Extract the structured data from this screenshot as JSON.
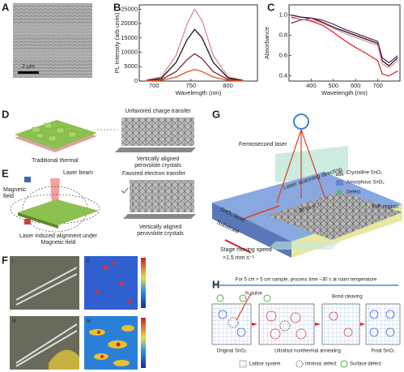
{
  "panels": {
    "A": {
      "letter": "A",
      "scale": "2 μm"
    },
    "B": {
      "letter": "B"
    },
    "C": {
      "letter": "C"
    },
    "D": {
      "letter": "D",
      "top": "Unfavored charge transfer",
      "left": "Traditional thermal",
      "right": [
        "Vertically aligned",
        "perovskite crystals"
      ]
    },
    "E": {
      "letter": "E",
      "beam": "Laser beam",
      "field": [
        "Magnetic",
        "field"
      ],
      "top": "Favored electron transfer",
      "left": [
        "Laser induced alignment under",
        "Magnetic field"
      ],
      "right": [
        "Vertically aligned",
        "perovskite crystals"
      ]
    },
    "F": {
      "letter": "F",
      "subs": [
        "i",
        "ii",
        "iii",
        "iv"
      ]
    },
    "G": {
      "letter": "G",
      "laser": "Femtosecond laser",
      "legend": [
        "Crystalline SnO₂",
        "Amorphous SnO₂",
        "Defect"
      ],
      "pip": "PiP region",
      "scan": "Laser scanning direction",
      "scan_speed": "~36 m s⁻¹",
      "layer": "SnO₂ layer",
      "substrate": "Substrate",
      "stage": "Stage moving speed",
      "stage_speed": ">1.5 mm s⁻¹"
    },
    "H": {
      "letter": "H",
      "title": "For 5 cm × 5 cm sample, process time ~30 s at room temperature",
      "pulse": "fs pulse",
      "bond": "Bond cleaving",
      "steps": [
        "Original SnO₂",
        "Ultrafast nonthermal annealing",
        "Final SnO₂"
      ],
      "legend": [
        "Lattice system",
        "Intrinsic defect",
        "Surface defect"
      ]
    }
  },
  "chart_data": [
    {
      "type": "line",
      "ylabel": "PL Intensity (arb units)",
      "xlabel": "Wavelength (nm)",
      "x": [
        690,
        710,
        730,
        745,
        755,
        765,
        780,
        800,
        820
      ],
      "xlim": [
        680,
        840
      ],
      "xticks": [
        700,
        750,
        800
      ],
      "ylim": [
        0,
        26500
      ],
      "yticks": [
        0,
        5000,
        10000,
        15000,
        20000,
        25000
      ],
      "series": [
        {
          "color": "#d98a8a",
          "values": [
            300,
            1500,
            9000,
            20000,
            25000,
            21000,
            9000,
            1500,
            300
          ]
        },
        {
          "color": "#1a1a1a",
          "values": [
            200,
            1000,
            6500,
            14500,
            18000,
            15000,
            6500,
            1100,
            200
          ]
        },
        {
          "color": "#7a2a2a",
          "values": [
            100,
            500,
            3300,
            7500,
            9500,
            7800,
            3300,
            600,
            100
          ]
        },
        {
          "color": "#e0502a",
          "values": [
            50,
            250,
            1400,
            3200,
            4000,
            3300,
            1400,
            250,
            50
          ]
        }
      ]
    },
    {
      "type": "line",
      "ylabel": "Absorbance",
      "xlabel": "Wavelength (nm)",
      "x": [
        310,
        350,
        400,
        450,
        500,
        550,
        600,
        650,
        700,
        720,
        750,
        790
      ],
      "xlim": [
        300,
        800
      ],
      "xticks": [
        400,
        500,
        600,
        700
      ],
      "ylim": [
        0.35,
        1.1
      ],
      "yticks": [
        0.4,
        0.6,
        0.8,
        {
          "value": 1,
          "label": "1.0"
        }
      ],
      "series": [
        {
          "color": "#1a1a1a",
          "values": [
            1.0,
            0.98,
            0.97,
            0.93,
            0.88,
            0.84,
            0.8,
            0.76,
            0.72,
            0.55,
            0.5,
            0.58
          ]
        },
        {
          "color": "#e03030",
          "values": [
            0.98,
            0.96,
            0.94,
            0.9,
            0.83,
            0.75,
            0.68,
            0.62,
            0.55,
            0.42,
            0.4,
            0.45
          ]
        },
        {
          "color": "#6a2c6a",
          "values": [
            0.92,
            0.95,
            0.97,
            0.95,
            0.91,
            0.86,
            0.82,
            0.78,
            0.74,
            0.58,
            0.53,
            0.6
          ]
        },
        {
          "color": "#e090a0",
          "values": [
            0.97,
            0.96,
            0.95,
            0.92,
            0.87,
            0.82,
            0.78,
            0.74,
            0.7,
            0.52,
            0.48,
            0.55
          ]
        }
      ]
    }
  ]
}
